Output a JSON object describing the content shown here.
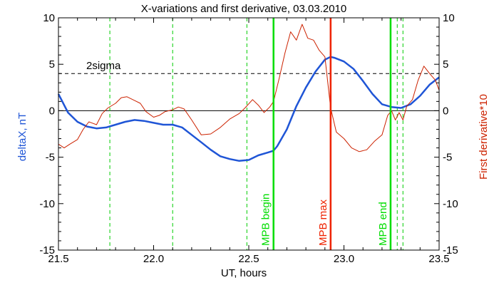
{
  "chart_data": {
    "type": "line",
    "title": "X-variations and first derivative, 03.03.2010",
    "xlabel": "UT, hours",
    "ylabel_left": "deltaX, nT",
    "ylabel_right": "First derivative*10",
    "xlim": [
      21.5,
      23.5
    ],
    "ylim": [
      -15,
      10
    ],
    "x_ticks": [
      "21.5",
      "22.0",
      "22.5",
      "23.0",
      "23.5"
    ],
    "y_ticks": [
      "-15",
      "-10",
      "-5",
      "0",
      "5",
      "10"
    ],
    "threshold": {
      "label": "2sigma",
      "value": 4
    },
    "zero_line": 0,
    "green_dashed_lines_x": [
      21.77,
      22.1,
      22.49,
      23.28,
      23.31
    ],
    "event_lines": [
      {
        "label": "MPB begin",
        "x": 22.63,
        "color": "#00dd00"
      },
      {
        "label": "MPB max",
        "x": 22.93,
        "color": "#ee2200"
      },
      {
        "label": "MPB end",
        "x": 23.245,
        "color": "#00dd00"
      }
    ],
    "series": [
      {
        "axis": "left",
        "color": "#1f55d6",
        "x": [
          21.5,
          21.55,
          21.6,
          21.65,
          21.7,
          21.75,
          21.8,
          21.85,
          21.9,
          21.95,
          22.0,
          22.05,
          22.1,
          22.15,
          22.2,
          22.25,
          22.3,
          22.35,
          22.4,
          22.45,
          22.5,
          22.55,
          22.6,
          22.63,
          22.65,
          22.7,
          22.75,
          22.8,
          22.85,
          22.9,
          22.93,
          22.95,
          23.0,
          23.05,
          23.1,
          23.15,
          23.2,
          23.25,
          23.3,
          23.35,
          23.4,
          23.45,
          23.5
        ],
        "y": [
          1.8,
          -0.2,
          -1.2,
          -1.7,
          -1.9,
          -1.8,
          -1.5,
          -1.2,
          -1.0,
          -1.1,
          -1.3,
          -1.5,
          -1.5,
          -1.8,
          -2.6,
          -3.4,
          -4.2,
          -4.9,
          -5.2,
          -5.4,
          -5.3,
          -4.8,
          -4.5,
          -4.3,
          -3.8,
          -2.0,
          0.5,
          2.5,
          4.2,
          5.5,
          5.8,
          5.7,
          5.3,
          4.5,
          3.2,
          1.8,
          0.7,
          0.4,
          0.3,
          0.7,
          1.6,
          2.8,
          3.6
        ]
      },
      {
        "axis": "right",
        "color": "#cc2200",
        "x": [
          21.5,
          21.53,
          21.56,
          21.6,
          21.63,
          21.66,
          21.7,
          21.73,
          21.76,
          21.8,
          21.83,
          21.86,
          21.9,
          21.93,
          21.96,
          22.0,
          22.03,
          22.06,
          22.1,
          22.13,
          22.16,
          22.2,
          22.25,
          22.3,
          22.35,
          22.4,
          22.45,
          22.48,
          22.52,
          22.55,
          22.58,
          22.61,
          22.63,
          22.66,
          22.69,
          22.72,
          22.75,
          22.78,
          22.81,
          22.84,
          22.87,
          22.9,
          22.93,
          22.96,
          23.0,
          23.04,
          23.08,
          23.12,
          23.16,
          23.2,
          23.23,
          23.25,
          23.27,
          23.29,
          23.31,
          23.33,
          23.36,
          23.39,
          23.42,
          23.45,
          23.48,
          23.5
        ],
        "y": [
          -3.6,
          -4.0,
          -3.6,
          -3.1,
          -2.0,
          -1.2,
          -1.5,
          -0.3,
          0.3,
          0.8,
          1.4,
          1.5,
          1.1,
          0.8,
          -0.1,
          -0.7,
          -0.5,
          -0.1,
          0.1,
          0.4,
          0.2,
          -1.0,
          -2.6,
          -2.5,
          -1.8,
          -0.9,
          -0.3,
          0.3,
          1.2,
          0.6,
          -0.2,
          0.4,
          1.0,
          3.5,
          6.2,
          8.5,
          7.6,
          9.3,
          7.8,
          7.6,
          6.5,
          5.8,
          0.3,
          -2.3,
          -3.0,
          -4.0,
          -4.4,
          -4.2,
          -3.3,
          -2.6,
          -0.5,
          0.0,
          -1.0,
          -0.2,
          -1.0,
          0.5,
          1.2,
          3.3,
          4.8,
          4.0,
          3.3,
          2.2
        ]
      }
    ]
  }
}
